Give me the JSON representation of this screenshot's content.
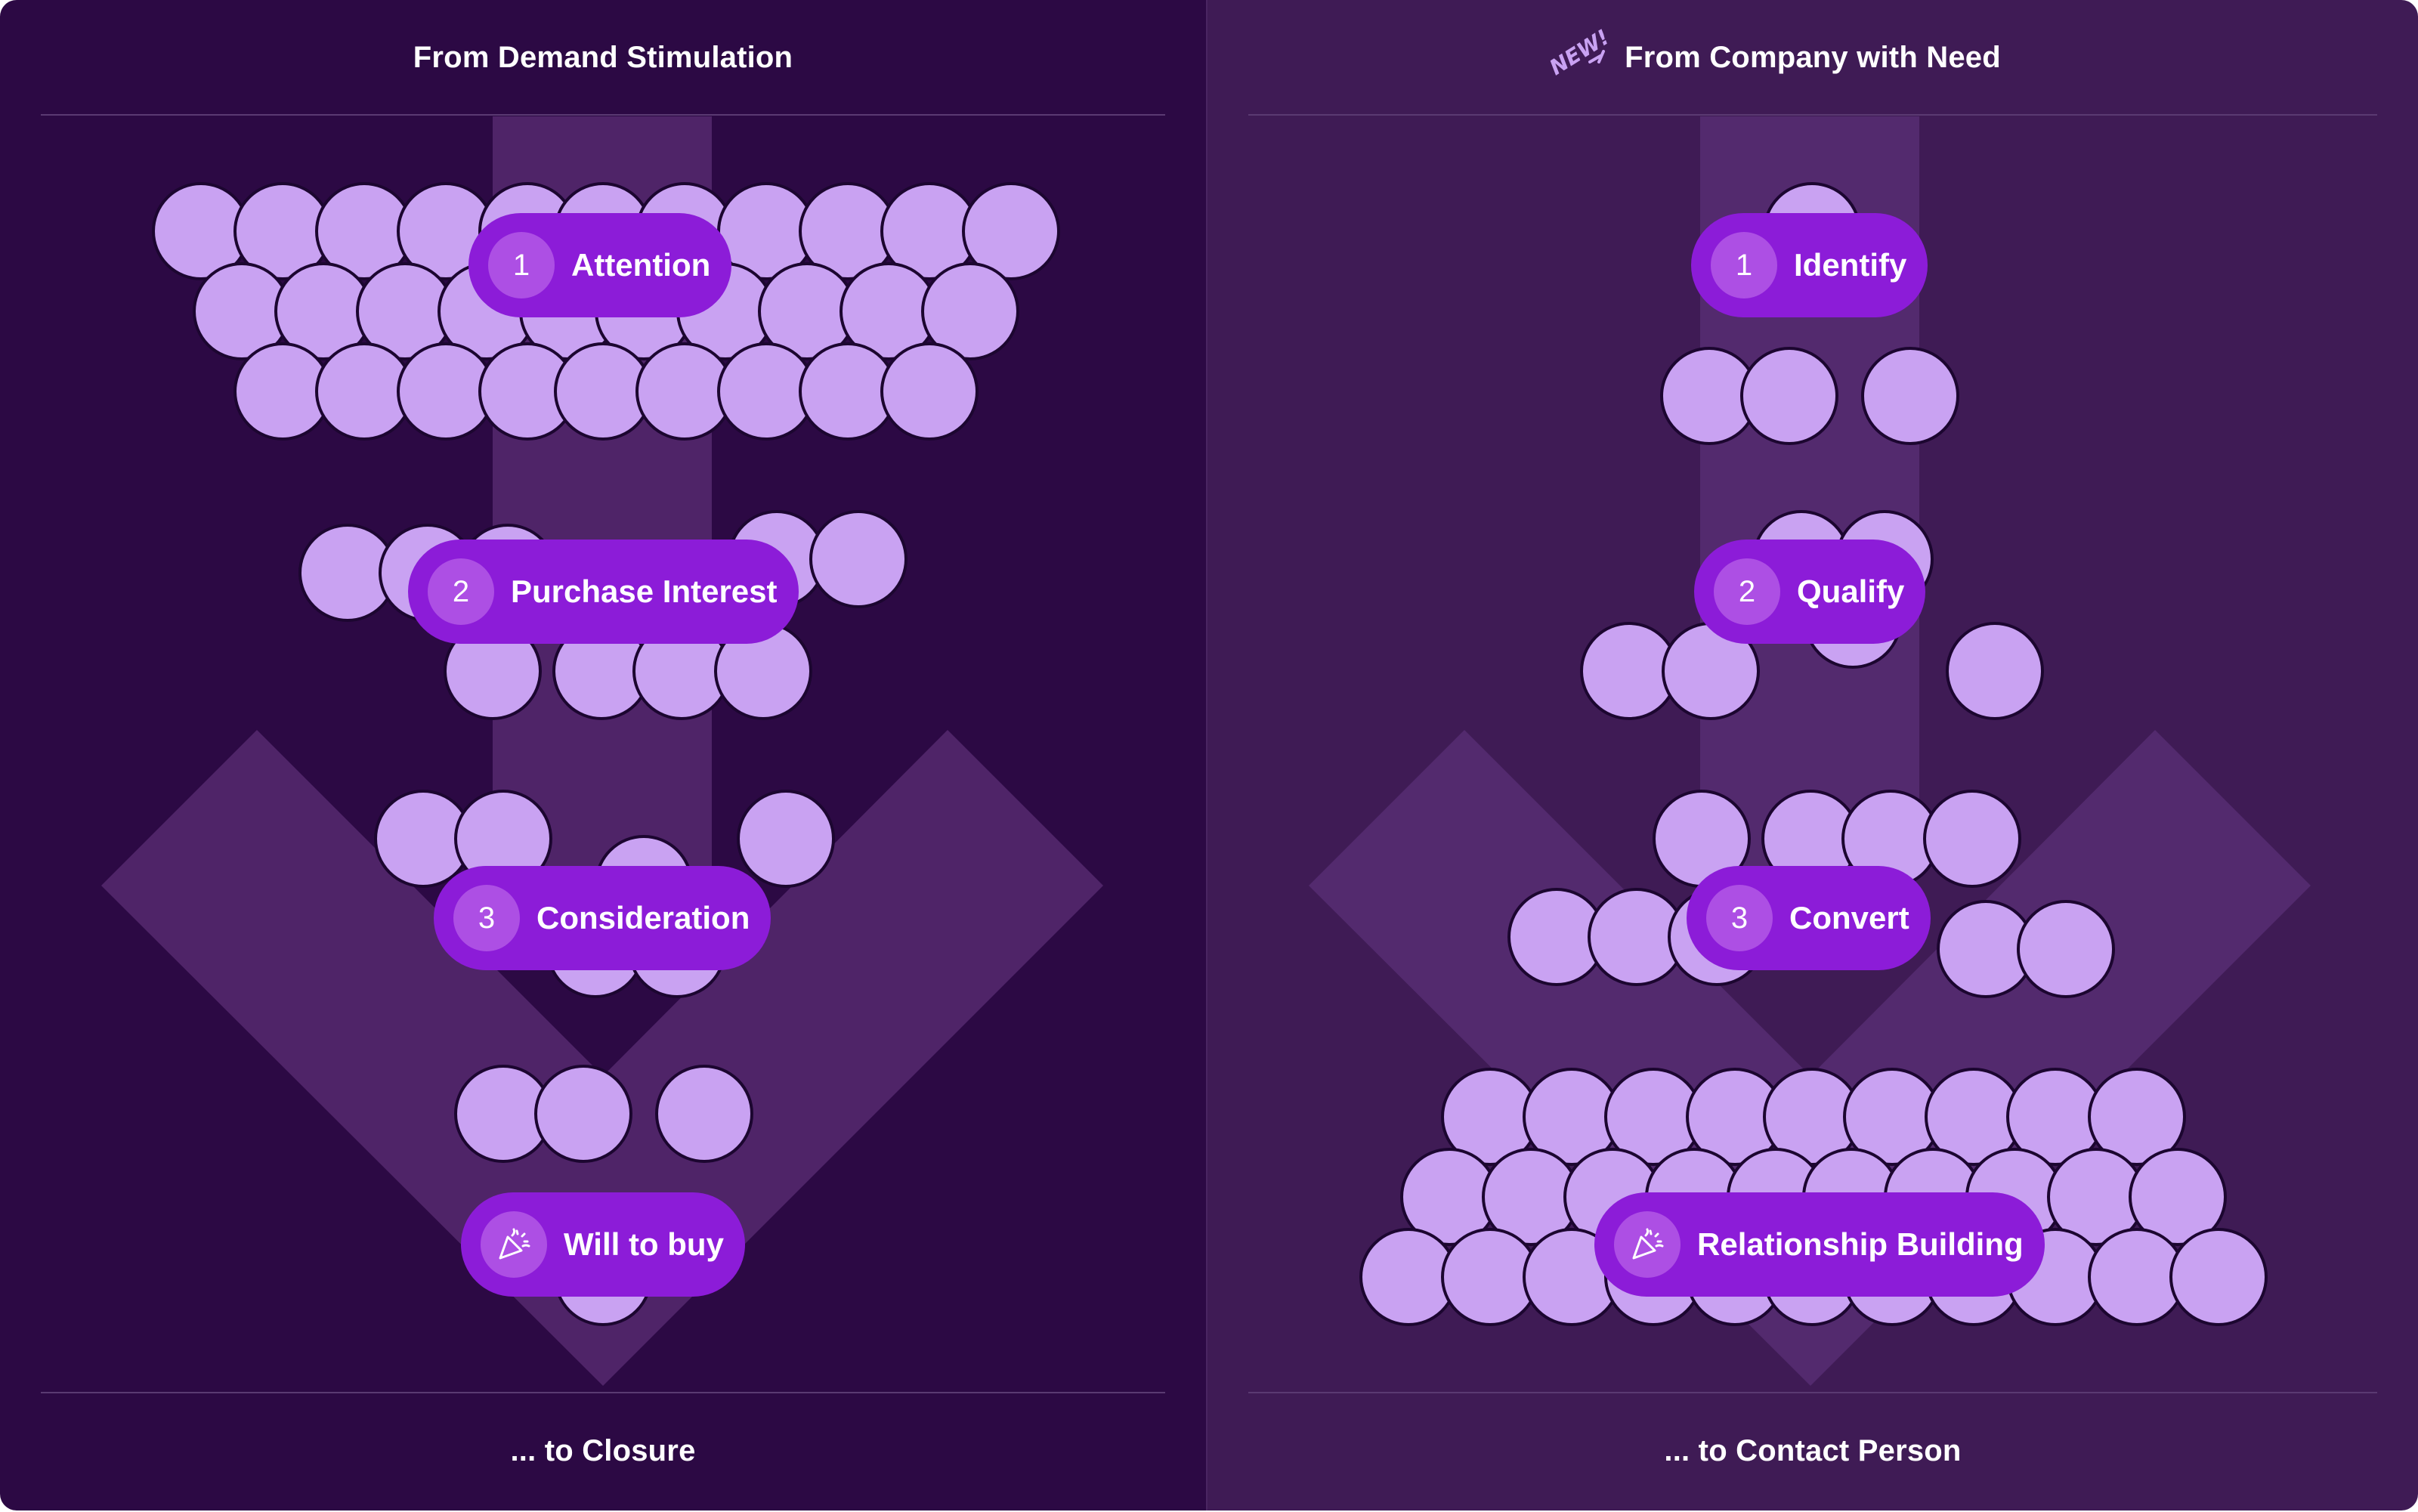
{
  "left_panel": {
    "title": "From Demand Stimulation",
    "footer": "... to Closure",
    "stages": [
      {
        "number": "1",
        "label": "Attention"
      },
      {
        "number": "2",
        "label": "Purchase Interest"
      },
      {
        "number": "3",
        "label": "Consideration"
      },
      {
        "icon": "party-popper-icon",
        "label": "Will to buy"
      }
    ]
  },
  "right_panel": {
    "title": "From Company with Need",
    "badge_text": "NEW!",
    "footer": "... to Contact Person",
    "stages": [
      {
        "number": "1",
        "label": "Identify"
      },
      {
        "number": "2",
        "label": "Qualify"
      },
      {
        "number": "3",
        "label": "Convert"
      },
      {
        "icon": "party-popper-icon",
        "label": "Relationship Building"
      }
    ]
  },
  "colors": {
    "left_background": "#2c0944",
    "right_background": "#3f1b55",
    "arrow": "#4f2468",
    "circle_fill": "#c9a2f2",
    "pill": "#8c1cd8",
    "pill_badge": "#ad4fe4",
    "sticker": "#c9a2f2"
  }
}
